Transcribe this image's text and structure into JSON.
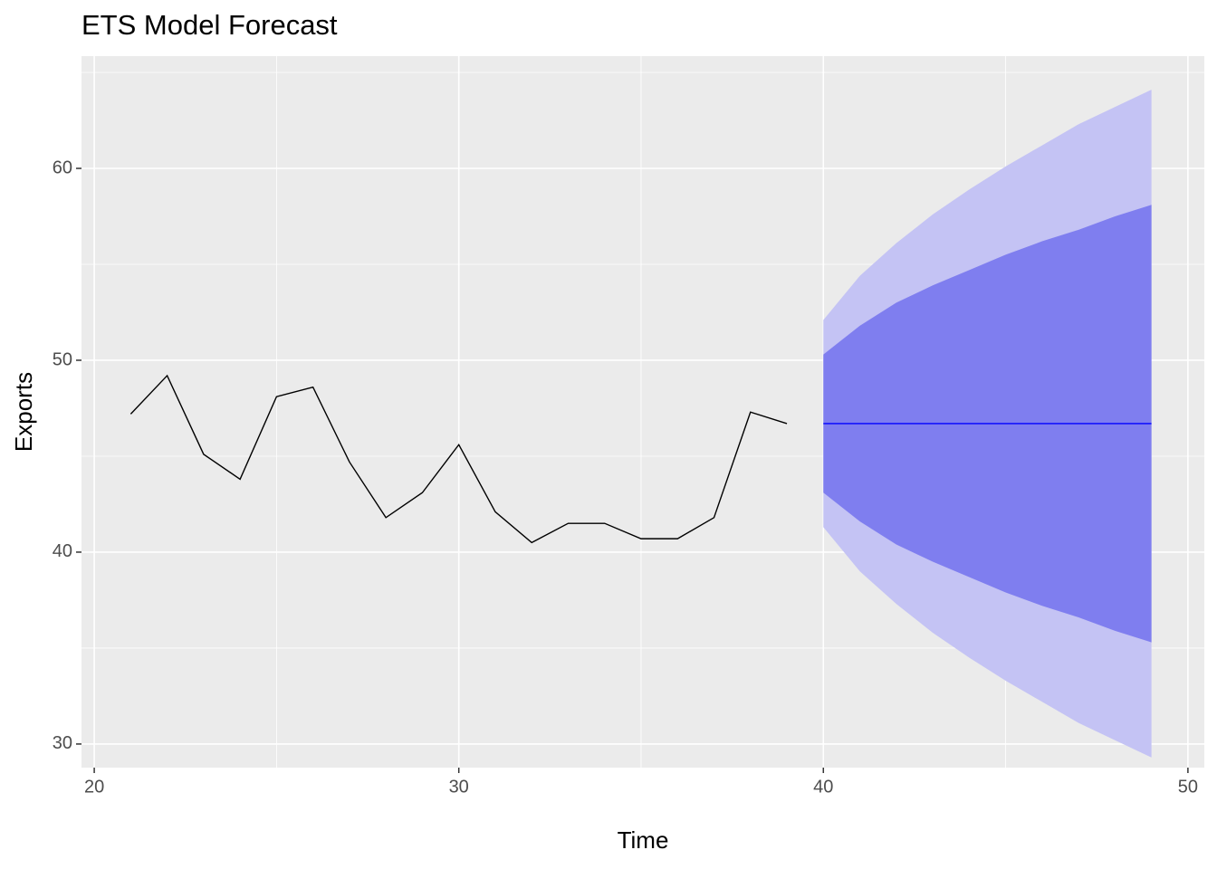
{
  "chart_data": {
    "type": "line",
    "title": "ETS Model Forecast",
    "x_label": "Time",
    "y_label": "Exports",
    "x": [
      21,
      22,
      23,
      24,
      25,
      26,
      27,
      28,
      29,
      30,
      31,
      32,
      33,
      34,
      35,
      36,
      37,
      38,
      39,
      40,
      41,
      42,
      43,
      44,
      45,
      46,
      47,
      48,
      49
    ],
    "series": [
      {
        "color": "#000000",
        "values": [
          47.2,
          49.2,
          45.1,
          43.8,
          48.1,
          48.6,
          44.7,
          41.8,
          43.1,
          45.6,
          42.1,
          40.5,
          41.5,
          41.5,
          40.7,
          40.7,
          41.8,
          47.3,
          46.7,
          null,
          null,
          null,
          null,
          null,
          null,
          null,
          null,
          null,
          null
        ]
      },
      {
        "color": "#0000ff",
        "values": [
          null,
          null,
          null,
          null,
          null,
          null,
          null,
          null,
          null,
          null,
          null,
          null,
          null,
          null,
          null,
          null,
          null,
          null,
          null,
          46.7,
          46.7,
          46.7,
          46.7,
          46.7,
          46.7,
          46.7,
          46.7,
          46.7,
          46.7
        ]
      }
    ],
    "bands": [
      {
        "color": "#c4c3f4",
        "upper": [
          null,
          null,
          null,
          null,
          null,
          null,
          null,
          null,
          null,
          null,
          null,
          null,
          null,
          null,
          null,
          null,
          null,
          null,
          null,
          52.1,
          54.4,
          56.1,
          57.6,
          58.9,
          60.1,
          61.2,
          62.3,
          63.2,
          64.1
        ],
        "lower": [
          null,
          null,
          null,
          null,
          null,
          null,
          null,
          null,
          null,
          null,
          null,
          null,
          null,
          null,
          null,
          null,
          null,
          null,
          null,
          41.3,
          39.0,
          37.3,
          35.8,
          34.5,
          33.3,
          32.2,
          31.1,
          30.2,
          29.3
        ]
      },
      {
        "color": "#7f7eef",
        "upper": [
          null,
          null,
          null,
          null,
          null,
          null,
          null,
          null,
          null,
          null,
          null,
          null,
          null,
          null,
          null,
          null,
          null,
          null,
          null,
          50.3,
          51.8,
          53.0,
          53.9,
          54.7,
          55.5,
          56.2,
          56.8,
          57.5,
          58.1
        ],
        "lower": [
          null,
          null,
          null,
          null,
          null,
          null,
          null,
          null,
          null,
          null,
          null,
          null,
          null,
          null,
          null,
          null,
          null,
          null,
          null,
          43.1,
          41.6,
          40.4,
          39.5,
          38.7,
          37.9,
          37.2,
          36.6,
          35.9,
          35.3
        ]
      }
    ],
    "xlim": [
      19.65,
      50.45
    ],
    "ylim": [
      28.77,
      65.85
    ],
    "xticks": [
      20,
      30,
      40,
      50
    ],
    "yticks": [
      30,
      40,
      50,
      60
    ],
    "x_minor_grid": [
      25,
      35,
      45
    ],
    "y_minor_grid": [
      35,
      45,
      55,
      65
    ],
    "grid": true
  }
}
